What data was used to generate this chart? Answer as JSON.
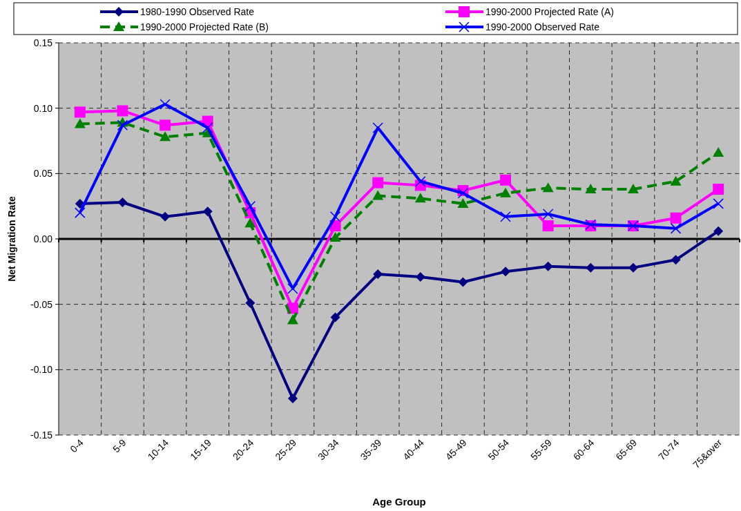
{
  "chart_data": {
    "type": "line",
    "xlabel": "Age Group",
    "ylabel": "Net Migration Rate",
    "categories": [
      "0-4",
      "5-9",
      "10-14",
      "15-19",
      "20-24",
      "25-29",
      "30-34",
      "35-39",
      "40-44",
      "45-49",
      "50-54",
      "55-59",
      "60-64",
      "65-69",
      "70-74",
      "75&over"
    ],
    "ylim": [
      -0.15,
      0.15
    ],
    "yticks": [
      {
        "value": -0.15,
        "label": "-0.15"
      },
      {
        "value": -0.1,
        "label": "-0.10"
      },
      {
        "value": -0.05,
        "label": "-0.05"
      },
      {
        "value": 0,
        "label": "0.00"
      },
      {
        "value": 0.05,
        "label": "0.05"
      },
      {
        "value": 0.1,
        "label": "0.10"
      },
      {
        "value": 0.15,
        "label": "0.15"
      }
    ],
    "grid": true,
    "legend": "top",
    "series": [
      {
        "name": "1980-1990 Observed Rate",
        "color": "#000080",
        "marker": "diamond",
        "line_style": "solid",
        "values": [
          0.027,
          0.028,
          0.017,
          0.021,
          -0.049,
          -0.122,
          -0.06,
          -0.027,
          -0.029,
          -0.033,
          -0.025,
          -0.021,
          -0.022,
          -0.022,
          -0.016,
          0.006
        ]
      },
      {
        "name": "1990-2000 Projected Rate (A)",
        "color": "#ff00ff",
        "marker": "square",
        "line_style": "solid",
        "values": [
          0.097,
          0.098,
          0.087,
          0.09,
          0.02,
          -0.053,
          0.01,
          0.043,
          0.041,
          0.037,
          0.045,
          0.01,
          0.01,
          0.01,
          0.016,
          0.038
        ]
      },
      {
        "name": "1990-2000 Projected Rate (B)",
        "color": "#008000",
        "marker": "triangle",
        "line_style": "dashed",
        "values": [
          0.088,
          0.089,
          0.078,
          0.081,
          0.012,
          -0.062,
          0.001,
          0.033,
          0.031,
          0.027,
          0.035,
          0.039,
          0.038,
          0.038,
          0.044,
          0.066
        ]
      },
      {
        "name": "1990-2000 Observed Rate",
        "color": "#0000ff",
        "marker": "cross",
        "line_style": "solid",
        "values": [
          0.02,
          0.087,
          0.103,
          0.085,
          0.025,
          -0.038,
          0.017,
          0.085,
          0.044,
          0.035,
          0.017,
          0.019,
          0.011,
          0.01,
          0.008,
          0.027
        ]
      }
    ]
  }
}
